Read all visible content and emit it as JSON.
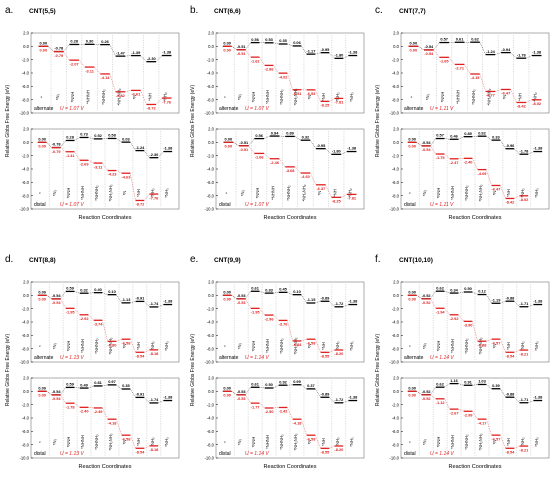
{
  "figure": {
    "axis_y_label": "Relative Gibbs Free Energy (eV)",
    "axis_x_label": "Reaction Coordinates",
    "species": [
      "*",
      "*N₂",
      "*NNH",
      "*NHNH",
      "*NHNH₂",
      "*NH₂NH₂",
      "*N",
      "*NH",
      "*NH₂",
      "*NH₃",
      "*"
    ],
    "colors": {
      "black": "#000000",
      "red": "#e02020",
      "gray": "#9a9a9a",
      "frame": "#777777"
    }
  },
  "chart_data": [
    {
      "type": "line",
      "panel_letter": "a.",
      "title": "CNT(5,5)",
      "ylim": [
        -10,
        2
      ],
      "y_ticks": [
        2,
        0,
        -2,
        -4,
        -6,
        -8,
        -10
      ],
      "subplots": [
        {
          "mechanism": "alternate",
          "potential": "U = 1.07 V",
          "series": [
            {
              "name": "U = 0 V",
              "values": [
                0.0,
                -0.78,
                0.28,
                0.3,
                0.26,
                -1.47,
                -1.39,
                -2.3,
                -1.38
              ]
            },
            {
              "name": "U = 1.07 V",
              "values": [
                0.0,
                -0.79,
                -2.07,
                -3.11,
                -4.14,
                -6.82,
                -6.61,
                -8.72,
                -7.76
              ]
            }
          ]
        },
        {
          "mechanism": "distal",
          "potential": "U = 1.07 V",
          "series": [
            {
              "name": "U = 0 V",
              "values": [
                0.0,
                -0.78,
                0.28,
                0.73,
                0.52,
                0.58,
                0.03,
                -1.24,
                -2.3,
                -1.38
              ]
            },
            {
              "name": "U = 1.07 V",
              "values": [
                0.0,
                -0.79,
                -1.41,
                -2.69,
                -3.11,
                -4.23,
                -4.63,
                -8.72,
                -7.76
              ]
            }
          ]
        }
      ]
    },
    {
      "type": "line",
      "panel_letter": "b.",
      "title": "CNT(6,6)",
      "ylim": [
        -10,
        2
      ],
      "y_ticks": [
        2,
        0,
        -2,
        -4,
        -6,
        -8,
        -10
      ],
      "subplots": [
        {
          "mechanism": "alternate",
          "potential": "U = 1.07 V",
          "series": [
            {
              "name": "U = 0 V",
              "values": [
                0.0,
                -0.51,
                0.56,
                0.53,
                0.35,
                0.06,
                -1.17,
                -0.95,
                -1.8,
                -1.38
              ]
            },
            {
              "name": "U = 1.07 V",
              "values": [
                0.0,
                -0.51,
                -1.62,
                -2.86,
                -4.02,
                -6.51,
                -6.53,
                -8.25,
                -7.81
              ]
            }
          ]
        },
        {
          "mechanism": "distal",
          "potential": "U = 1.07 V",
          "series": [
            {
              "name": "U = 0 V",
              "values": [
                0.0,
                -0.51,
                0.56,
                0.94,
                0.89,
                0.32,
                -0.95,
                -1.8,
                -1.38
              ]
            },
            {
              "name": "U = 1.07 V",
              "values": [
                0.0,
                -0.51,
                -1.66,
                -2.46,
                -3.68,
                -4.6,
                -6.37,
                -8.25,
                -7.81
              ]
            }
          ]
        }
      ]
    },
    {
      "type": "line",
      "panel_letter": "c.",
      "title": "CNT(7,7)",
      "ylim": [
        -10,
        2
      ],
      "y_ticks": [
        2,
        0,
        -2,
        -4,
        -6,
        -8,
        -10
      ],
      "subplots": [
        {
          "mechanism": "alternate",
          "potential": "U = 1.11 V",
          "series": [
            {
              "name": "U = 0 V",
              "values": [
                0.0,
                -0.54,
                0.57,
                0.61,
                0.62,
                -1.24,
                -0.94,
                -1.78,
                -1.38
              ]
            },
            {
              "name": "U = 1.11 V",
              "values": [
                0.0,
                -0.54,
                -1.65,
                -2.71,
                -4.15,
                -6.77,
                -6.47,
                -8.42,
                -8.02
              ]
            }
          ]
        },
        {
          "mechanism": "distal",
          "potential": "U = 1.11 V",
          "series": [
            {
              "name": "U = 0 V",
              "values": [
                0.0,
                -0.54,
                0.57,
                0.46,
                0.85,
                0.92,
                0.33,
                -0.96,
                -1.78,
                -1.38
              ]
            },
            {
              "name": "U = 1.11 V",
              "values": [
                0.0,
                -0.54,
                -1.75,
                -2.47,
                -2.4,
                -4.09,
                -6.47,
                -8.42,
                -8.02
              ]
            }
          ]
        }
      ]
    },
    {
      "type": "line",
      "panel_letter": "d.",
      "title": "CNT(8,8)",
      "ylim": [
        -10,
        2
      ],
      "y_ticks": [
        2,
        0,
        -2,
        -4,
        -6,
        -8,
        -10
      ],
      "subplots": [
        {
          "mechanism": "alternate",
          "potential": "U = 1.13 V",
          "series": [
            {
              "name": "U = 0 V",
              "values": [
                0.0,
                -0.54,
                0.59,
                0.32,
                0.4,
                0.1,
                -1.13,
                -0.91,
                -1.74,
                -1.38
              ]
            },
            {
              "name": "U = 1.13 V",
              "values": [
                0.0,
                -0.54,
                -1.95,
                -2.92,
                -3.74,
                -6.9,
                -6.58,
                -8.54,
                -8.18
              ]
            }
          ]
        },
        {
          "mechanism": "distal",
          "potential": "U = 1.13 V",
          "series": [
            {
              "name": "U = 0 V",
              "values": [
                0.0,
                -0.54,
                0.59,
                0.49,
                0.81,
                0.97,
                0.35,
                -0.91,
                -1.74,
                -1.38
              ]
            },
            {
              "name": "U = 1.13 V",
              "values": [
                0.0,
                -0.54,
                -1.78,
                -2.4,
                -2.49,
                -4.18,
                -6.58,
                -8.54,
                -8.18
              ]
            }
          ]
        }
      ]
    },
    {
      "type": "line",
      "panel_letter": "e.",
      "title": "CNT(9,9)",
      "ylim": [
        -10,
        2
      ],
      "y_ticks": [
        2,
        0,
        -2,
        -4,
        -6,
        -8,
        -10
      ],
      "subplots": [
        {
          "mechanism": "alternate",
          "potential": "U = 1.14 V",
          "series": [
            {
              "name": "U = 0 V",
              "values": [
                0.0,
                -0.53,
                0.61,
                0.33,
                0.45,
                0.1,
                -1.15,
                -0.89,
                -1.72,
                -1.38
              ]
            },
            {
              "name": "U = 1.14 V",
              "values": [
                0.0,
                -0.53,
                -1.95,
                -2.96,
                -3.76,
                -6.84,
                -6.58,
                -8.55,
                -8.2
              ]
            }
          ]
        },
        {
          "mechanism": "distal",
          "potential": "U = 1.14 V",
          "series": [
            {
              "name": "U = 0 V",
              "values": [
                0.0,
                -0.53,
                0.61,
                0.5,
                0.92,
                0.99,
                0.37,
                -0.89,
                -1.72,
                -1.38
              ]
            },
            {
              "name": "U = 1.14 V",
              "values": [
                0.0,
                -0.53,
                -1.77,
                -2.5,
                -2.42,
                -4.18,
                -6.58,
                -8.55,
                -8.2
              ]
            }
          ]
        }
      ]
    },
    {
      "type": "line",
      "panel_letter": "f.",
      "title": "CNT(10,10)",
      "ylim": [
        -10,
        2
      ],
      "y_ticks": [
        2,
        0,
        -2,
        -4,
        -6,
        -8,
        -10
      ],
      "subplots": [
        {
          "mechanism": "alternate",
          "potential": "U = 1.14 V",
          "series": [
            {
              "name": "U = 0 V",
              "values": [
                0.0,
                -0.52,
                0.62,
                0.34,
                0.5,
                0.12,
                -1.19,
                -0.88,
                -1.71,
                -1.38
              ]
            },
            {
              "name": "U = 1.14 V",
              "values": [
                0.0,
                -0.52,
                -1.94,
                -2.92,
                -3.9,
                -6.88,
                -6.57,
                -8.54,
                -8.21
              ]
            }
          ]
        },
        {
          "mechanism": "distal",
          "potential": "U = 1.14 V",
          "series": [
            {
              "name": "U = 0 V",
              "values": [
                0.0,
                -0.52,
                0.62,
                1.16,
                0.91,
                1.03,
                0.39,
                -0.88,
                -1.71,
                -1.38
              ]
            },
            {
              "name": "U = 1.14 V",
              "values": [
                0.0,
                -0.52,
                -1.12,
                -2.67,
                -2.99,
                -4.17,
                -6.57,
                -8.54,
                -8.21
              ]
            }
          ]
        }
      ]
    }
  ]
}
